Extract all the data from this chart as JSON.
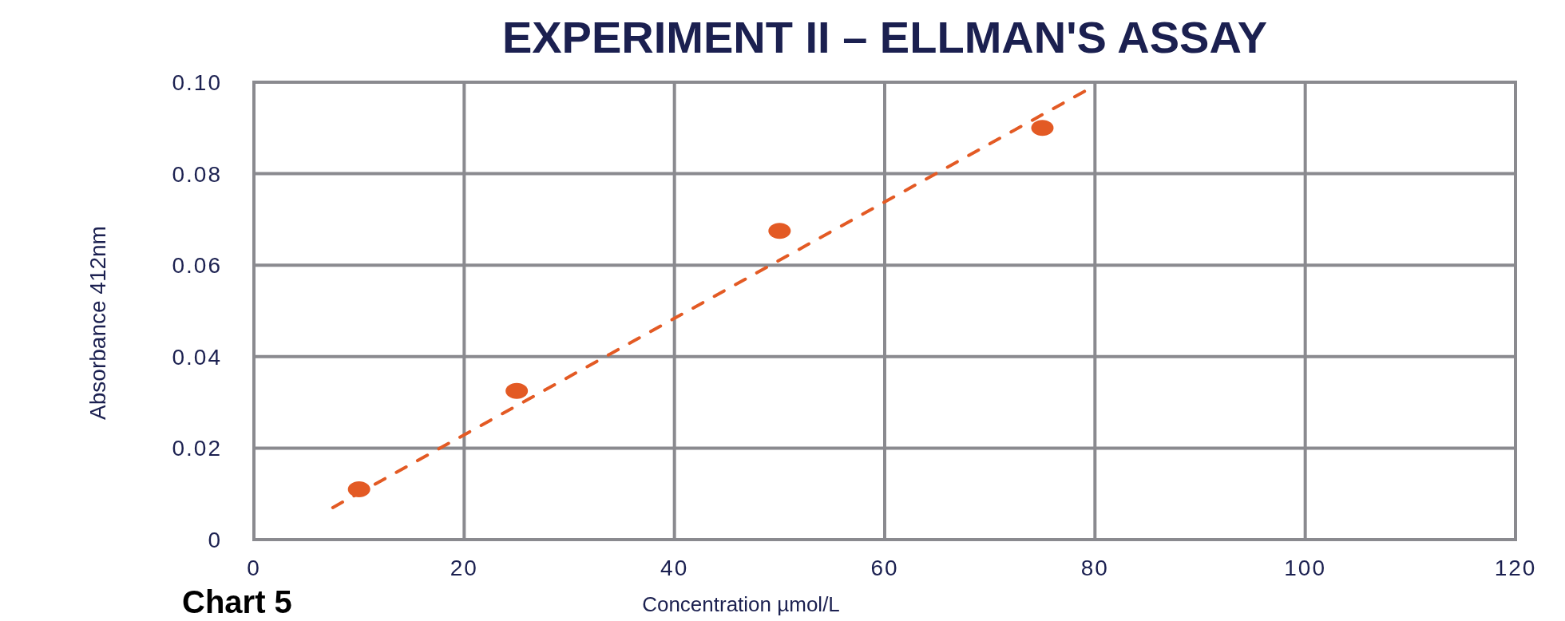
{
  "chart_data": {
    "type": "scatter",
    "title": "EXPERIMENT II – ELLMAN'S ASSAY",
    "xlabel": "Concentration µmol/L",
    "ylabel": "Absorbance 412nm",
    "annotations": [
      "Chart 5"
    ],
    "series": [
      {
        "color": "#e35a24",
        "x": [
          10,
          25,
          50,
          75
        ],
        "values": [
          0.011,
          0.0325,
          0.0675,
          0.09
        ],
        "marker": "circle"
      },
      {
        "type": "line",
        "color": "#e35a24",
        "x": [
          7.5,
          79
        ],
        "values": [
          0.007,
          0.098
        ],
        "line_style": "dashed"
      }
    ],
    "xlim": [
      0,
      120
    ],
    "xticks": [
      0,
      20,
      40,
      60,
      80,
      100,
      120
    ],
    "ylim": [
      0,
      0.1
    ],
    "yticks": [
      0,
      0.02,
      0.04,
      0.06,
      0.08,
      {
        "value": 0.1,
        "label": "0.10"
      }
    ],
    "grid": true
  }
}
